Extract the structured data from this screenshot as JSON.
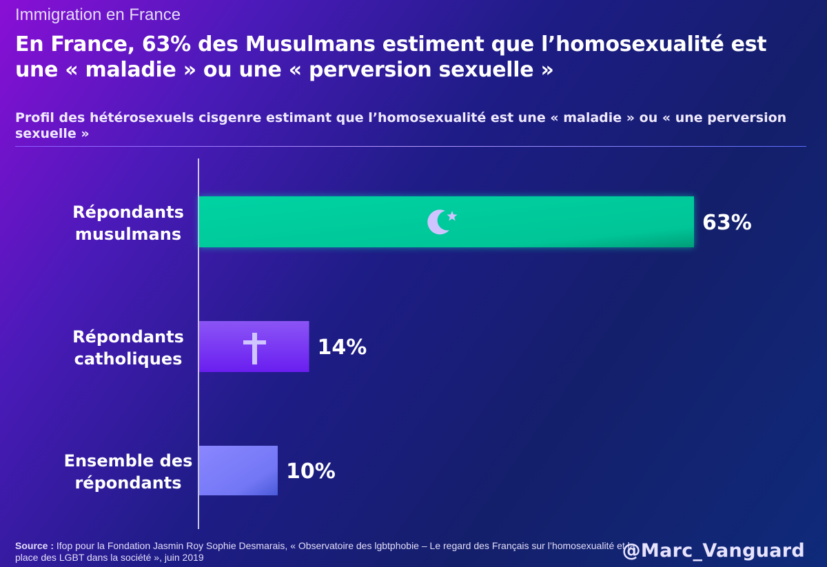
{
  "header": {
    "kicker": "Immigration en France",
    "title": "En France, 63% des Musulmans estiment que l’homosexualité est une « maladie » ou une « perversion sexuelle »",
    "subtitle": "Profil des hétérosexuels cisgenre estimant que l’homosexualité est une « maladie » ou « une perversion sexuelle »"
  },
  "chart_data": {
    "type": "bar",
    "orientation": "horizontal",
    "categories": [
      [
        "Répondants",
        "musulmans"
      ],
      [
        "Répondants",
        "catholiques"
      ],
      [
        "Ensemble des",
        "répondants"
      ]
    ],
    "values": [
      63,
      14,
      10
    ],
    "value_labels": [
      "63%",
      "14%",
      "10%"
    ],
    "bar_colors": [
      "#00c99a",
      "#7a2cf2",
      "#7a7cff"
    ],
    "bar_icons": [
      "crescent-star-icon",
      "cross-icon",
      ""
    ],
    "xlim": [
      0,
      63
    ],
    "grid": false
  },
  "footer": {
    "source_prefix": "Source :",
    "source_text": "Ifop pour la Fondation Jasmin Roy Sophie Desmarais, « Observatoire des lgbtphobie – Le regard des Français sur l’homosexualité et la place des LGBT dans la société », juin 2019",
    "handle": "@Marc_Vanguard"
  }
}
